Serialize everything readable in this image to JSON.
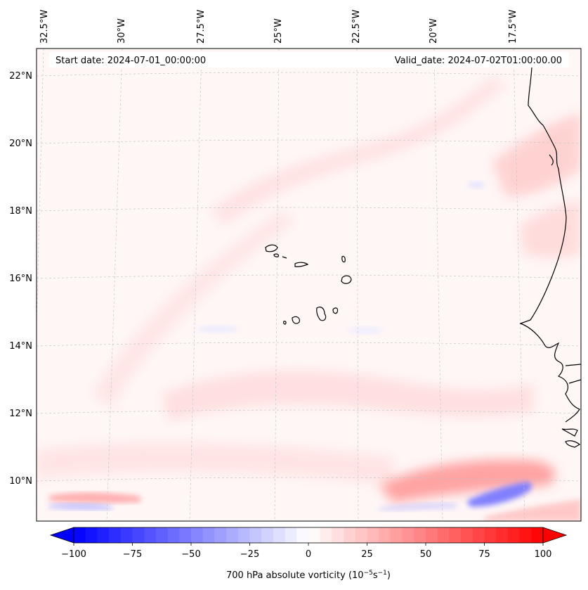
{
  "header": {
    "start_date": "Start date: 2024-07-01_00:00:00",
    "valid_date": "Valid_date: 2024-07-02T01:00:00.00"
  },
  "map": {
    "lon_labels": [
      "32.5°W",
      "30°W",
      "27.5°W",
      "25°W",
      "22.5°W",
      "20°W",
      "17.5°W"
    ],
    "lat_labels": [
      "22°N",
      "20°N",
      "18°N",
      "16°N",
      "14°N",
      "12°N",
      "10°N"
    ],
    "region": [
      "Cape Verde Islands",
      "West African coast"
    ]
  },
  "colorbar": {
    "ticks": [
      "−100",
      "−75",
      "−50",
      "−25",
      "0",
      "25",
      "50",
      "75",
      "100"
    ],
    "values": [
      -100,
      -75,
      -50,
      -25,
      0,
      25,
      50,
      75,
      100
    ],
    "min": -100,
    "max": 100,
    "levels": 40,
    "label_prefix": "700 hPa absolute vorticity (10",
    "label_exp1": "−5",
    "label_mid": "s",
    "label_exp2": "−1",
    "label_suffix": ")",
    "neg_color": "#0000ff",
    "pos_color": "#ff0000",
    "mid_color": "#ffffff"
  }
}
